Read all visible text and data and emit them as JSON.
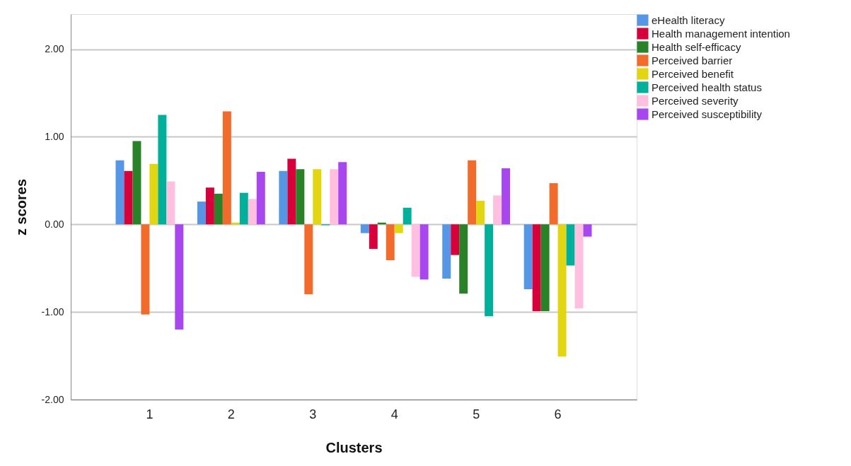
{
  "chart_data": {
    "type": "bar",
    "xlabel": "Clusters",
    "ylabel": "z scores",
    "categories": [
      "1",
      "2",
      "3",
      "4",
      "5",
      "6"
    ],
    "series": [
      {
        "name": "eHealth literacy",
        "color": "#5596e6",
        "values": [
          0.73,
          0.26,
          0.61,
          -0.1,
          -0.62,
          -0.74
        ]
      },
      {
        "name": "Health management intention",
        "color": "#d7003a",
        "values": [
          0.61,
          0.42,
          0.75,
          -0.28,
          -0.35,
          -0.99
        ]
      },
      {
        "name": "Health self-efficacy",
        "color": "#2a8228",
        "values": [
          0.95,
          0.35,
          0.63,
          0.02,
          -0.79,
          -0.99
        ]
      },
      {
        "name": "Perceived barrier",
        "color": "#f26b2b",
        "values": [
          -1.03,
          1.29,
          -0.8,
          -0.41,
          0.73,
          0.47
        ]
      },
      {
        "name": "Perceived benefit",
        "color": "#e2d610",
        "values": [
          0.69,
          0.02,
          0.63,
          -0.1,
          0.27,
          -1.51
        ]
      },
      {
        "name": "Perceived health status",
        "color": "#00b09b",
        "values": [
          1.25,
          0.36,
          -0.01,
          0.19,
          -1.05,
          -0.47
        ]
      },
      {
        "name": "Perceived severity",
        "color": "#ffc0e0",
        "values": [
          0.49,
          0.29,
          0.63,
          -0.6,
          0.33,
          -0.96
        ]
      },
      {
        "name": "Perceived susceptibility",
        "color": "#a846f0",
        "values": [
          -1.2,
          0.6,
          0.71,
          -0.63,
          0.64,
          -0.14
        ]
      }
    ],
    "ylim": [
      -2,
      2.4
    ],
    "yticks": [
      {
        "value": -2,
        "label": "-2.00"
      },
      {
        "value": -1,
        "label": "-1.00"
      },
      {
        "value": 0,
        "label": "0.00"
      },
      {
        "value": 1,
        "label": "1.00"
      },
      {
        "value": 2,
        "label": "2.00"
      }
    ],
    "grid": "y",
    "legend": "top right"
  }
}
